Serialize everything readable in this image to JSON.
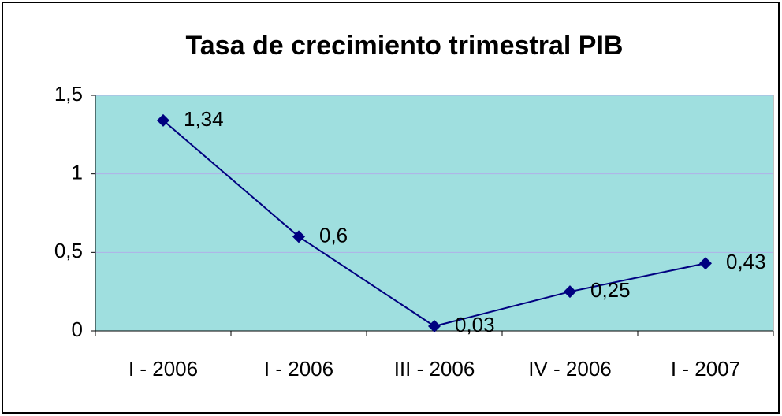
{
  "chart_data": {
    "type": "line",
    "title": "Tasa de crecimiento trimestral PIB",
    "categories": [
      "I - 2006",
      "I - 2006",
      "III - 2006",
      "IV - 2006",
      "I - 2007"
    ],
    "series": [
      {
        "name": null,
        "color": "#000080",
        "values": [
          1.34,
          0.6,
          0.03,
          0.25,
          0.43
        ],
        "value_labels": [
          "1,34",
          "0,6",
          "0,03",
          "0,25",
          "0,43"
        ]
      }
    ],
    "ylim": [
      0,
      1.5
    ],
    "yticks": [
      0,
      {
        "value": 0.5,
        "label": "0,5"
      },
      1,
      {
        "value": 1.5,
        "label": "1,5"
      }
    ],
    "grid": true,
    "plot_background": "#9fdfdf",
    "grid_color": "#b0b0e8"
  }
}
